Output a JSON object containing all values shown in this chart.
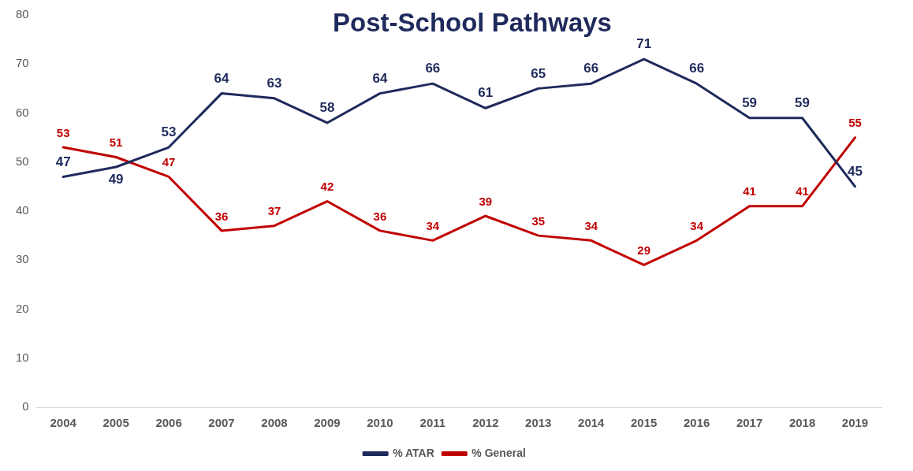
{
  "chart_data": {
    "type": "line",
    "title": "Post-School Pathways",
    "categories": [
      "2004",
      "2005",
      "2006",
      "2007",
      "2008",
      "2009",
      "2010",
      "2011",
      "2012",
      "2013",
      "2014",
      "2015",
      "2016",
      "2017",
      "2018",
      "2019"
    ],
    "series": [
      {
        "name": "% ATAR",
        "color": "#1f2a5c",
        "values": [
          47,
          49,
          53,
          64,
          63,
          58,
          64,
          66,
          61,
          65,
          66,
          71,
          66,
          59,
          59,
          45
        ]
      },
      {
        "name": "% General",
        "color": "#c00000",
        "values": [
          53,
          51,
          47,
          36,
          37,
          42,
          36,
          34,
          39,
          35,
          34,
          29,
          34,
          41,
          41,
          55
        ]
      }
    ],
    "ylim": [
      0,
      80
    ],
    "yticks": [
      0,
      10,
      20,
      30,
      40,
      50,
      60,
      70,
      80
    ],
    "grid": false,
    "legend": "bottom",
    "marker": "none",
    "line_style": "solid",
    "data_labels": true
  }
}
